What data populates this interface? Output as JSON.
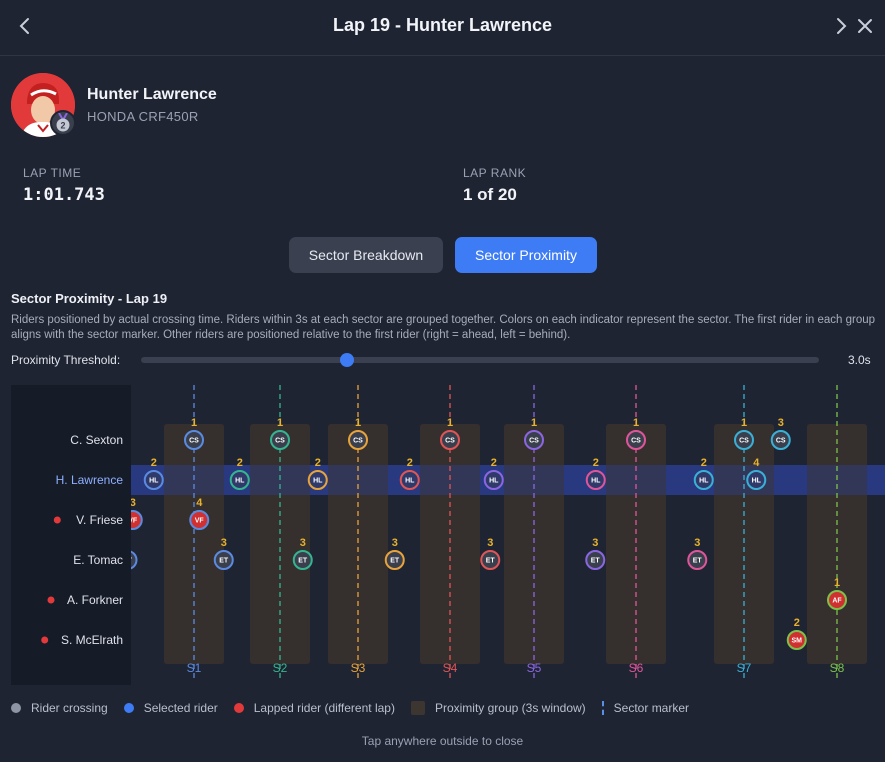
{
  "header": {
    "title": "Lap 19 - Hunter Lawrence",
    "back_icon": "chevron-left-icon",
    "next_icon": "chevron-right-icon",
    "close_icon": "close-icon"
  },
  "rider": {
    "name": "Hunter Lawrence",
    "bike": "HONDA CRF450R",
    "position_badge": "2"
  },
  "stats": {
    "lap_time_label": "LAP TIME",
    "lap_time": "1:01.743",
    "lap_rank_label": "LAP RANK",
    "lap_rank": "1 of 20"
  },
  "tabs": [
    {
      "label": "Sector Breakdown",
      "active": false
    },
    {
      "label": "Sector Proximity",
      "active": true
    }
  ],
  "proximity": {
    "title": "Sector Proximity - Lap 19",
    "description": "Riders positioned by actual crossing time. Riders within 3s at each sector are grouped together. Colors on each indicator represent the sector. The first rider in each group aligns with the sector marker. Other riders are positioned relative to the first rider (right = ahead, left = behind).",
    "threshold_label": "Proximity Threshold:",
    "threshold_value": "3.0s",
    "threshold_seconds": 3.0,
    "threshold_min": 0,
    "threshold_max": 10
  },
  "chart_data": {
    "type": "scatter",
    "title": "Sector Proximity - Lap 19",
    "riders": [
      {
        "name": "C. Sexton",
        "abbr": "CS",
        "lapped": false,
        "selected": false
      },
      {
        "name": "H. Lawrence",
        "abbr": "HL",
        "lapped": false,
        "selected": true
      },
      {
        "name": "V. Friese",
        "abbr": "VF",
        "lapped": true,
        "selected": false
      },
      {
        "name": "E. Tomac",
        "abbr": "ET",
        "lapped": false,
        "selected": false
      },
      {
        "name": "A. Forkner",
        "abbr": "AF",
        "lapped": true,
        "selected": false
      },
      {
        "name": "S. McElrath",
        "abbr": "SM",
        "lapped": true,
        "selected": false
      }
    ],
    "sectors": [
      {
        "label": "S1",
        "color": "#5b8be0"
      },
      {
        "label": "S2",
        "color": "#34b58f"
      },
      {
        "label": "S3",
        "color": "#e8a33a"
      },
      {
        "label": "S4",
        "color": "#e05555"
      },
      {
        "label": "S5",
        "color": "#8b66e0"
      },
      {
        "label": "S6",
        "color": "#e0559a"
      },
      {
        "label": "S7",
        "color": "#3bb0d6"
      },
      {
        "label": "S8",
        "color": "#7cc24a"
      }
    ],
    "crossings": [
      {
        "sector": 0,
        "rider": 0,
        "offset_s": 0,
        "rank": "1"
      },
      {
        "sector": 0,
        "rider": 1,
        "offset_s": -2.3,
        "rank": "2"
      },
      {
        "sector": 0,
        "rider": 2,
        "offset_s": -3.5,
        "rank": "3"
      },
      {
        "sector": 0,
        "rider": 3,
        "offset_s": -3.8,
        "rank": "4"
      },
      {
        "sector": 0,
        "rider": 2,
        "offset_s": 0.3,
        "rank": "4"
      },
      {
        "sector": 0,
        "rider": 3,
        "offset_s": 1.7,
        "rank": "3"
      },
      {
        "sector": 1,
        "rider": 0,
        "offset_s": 0,
        "rank": "1"
      },
      {
        "sector": 1,
        "rider": 1,
        "offset_s": -2.3,
        "rank": "2"
      },
      {
        "sector": 1,
        "rider": 3,
        "offset_s": 1.3,
        "rank": "3"
      },
      {
        "sector": 2,
        "rider": 0,
        "offset_s": 0,
        "rank": "1"
      },
      {
        "sector": 2,
        "rider": 1,
        "offset_s": -2.3,
        "rank": "2"
      },
      {
        "sector": 2,
        "rider": 3,
        "offset_s": 2.1,
        "rank": "3"
      },
      {
        "sector": 3,
        "rider": 0,
        "offset_s": 0,
        "rank": "1"
      },
      {
        "sector": 3,
        "rider": 1,
        "offset_s": -2.3,
        "rank": "2"
      },
      {
        "sector": 3,
        "rider": 3,
        "offset_s": 2.3,
        "rank": "3"
      },
      {
        "sector": 4,
        "rider": 0,
        "offset_s": 0,
        "rank": "1"
      },
      {
        "sector": 4,
        "rider": 1,
        "offset_s": -2.3,
        "rank": "2"
      },
      {
        "sector": 4,
        "rider": 3,
        "offset_s": 3.5,
        "rank": "3"
      },
      {
        "sector": 5,
        "rider": 0,
        "offset_s": 0,
        "rank": "1"
      },
      {
        "sector": 5,
        "rider": 1,
        "offset_s": -2.3,
        "rank": "2"
      },
      {
        "sector": 5,
        "rider": 3,
        "offset_s": 3.5,
        "rank": "3"
      },
      {
        "sector": 6,
        "rider": 0,
        "offset_s": 0,
        "rank": "1"
      },
      {
        "sector": 6,
        "rider": 1,
        "offset_s": -2.3,
        "rank": "2"
      },
      {
        "sector": 6,
        "rider": 0,
        "offset_s": 2.1,
        "rank": "3"
      },
      {
        "sector": 6,
        "rider": 1,
        "offset_s": 0.7,
        "rank": "4"
      },
      {
        "sector": 7,
        "rider": 4,
        "offset_s": 0,
        "rank": "1"
      },
      {
        "sector": 7,
        "rider": 5,
        "offset_s": -2.3,
        "rank": "2"
      }
    ]
  },
  "legend": [
    {
      "label": "Rider crossing",
      "type": "dot",
      "color": "#8e95a4"
    },
    {
      "label": "Selected rider",
      "type": "dot",
      "color": "#3d7cf5"
    },
    {
      "label": "Lapped rider (different lap)",
      "type": "dot",
      "color": "#e23a3a"
    },
    {
      "label": "Proximity group (3s window)",
      "type": "box",
      "color": "#3d3530"
    },
    {
      "label": "Sector marker",
      "type": "dash",
      "color": "#5a8fe8"
    }
  ],
  "footer": {
    "hint": "Tap anywhere outside to close"
  }
}
